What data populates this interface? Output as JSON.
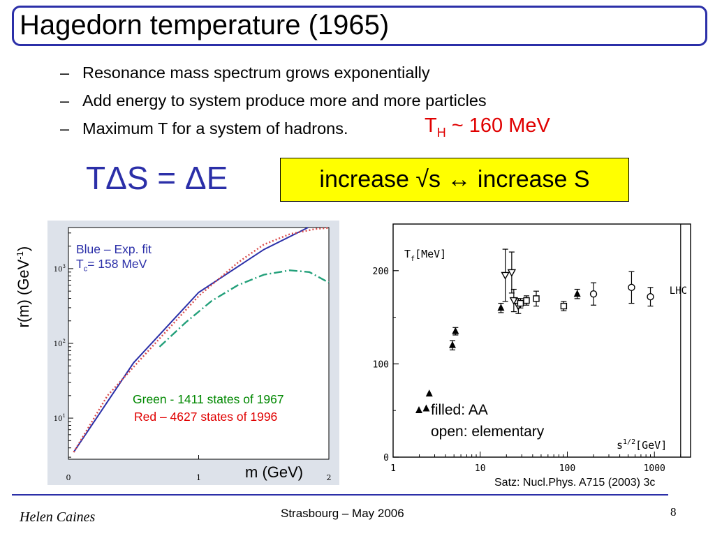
{
  "title": "Hagedorn temperature (1965)",
  "bullets": [
    "Resonance mass spectrum grows exponentially",
    "Add energy to system produce more and more particles",
    "Maximum T for a system of hadrons."
  ],
  "bullet_marker": "–",
  "th_note": {
    "symbol": "T",
    "sub": "H",
    "text": " ~ 160 MeV",
    "color": "#e00000"
  },
  "equation": "TΔS = ΔE",
  "highlight": {
    "text": "increase √s  ↔ increase S",
    "bg": "#ffff00"
  },
  "colors": {
    "title_border": "#2b2fa8",
    "blue": "#2b2fa8",
    "green": "#008800",
    "red": "#e00000",
    "panel_bg": "#dde2ea"
  },
  "left_chart_notes": {
    "blue_line1": "Blue – Exp. fit",
    "blue_T": "T",
    "blue_sub": "c",
    "blue_value": "= 158 MeV",
    "green": "Green - 1411 states of 1967",
    "red": "Red – 4627 states of 1996"
  },
  "right_chart_legend": {
    "filled": "filled: AA",
    "open": "open: elementary"
  },
  "source": "Satz: Nucl.Phys. A715 (2003) 3c",
  "footer": {
    "author": "Helen Caines",
    "conference": "Strasbourg  –  May 2006",
    "page": "8"
  },
  "chart_data": [
    {
      "type": "line",
      "xlabel": "m (GeV)",
      "ylabel": "r(m) (GeV-1)",
      "ylabel_main": "r(m) (GeV",
      "ylabel_sup": "-1",
      "ylabel_close": ")",
      "xlim": [
        0,
        2
      ],
      "ylim_log10": [
        0.45,
        3.55
      ],
      "yscale": "log",
      "x_ticks": [
        "0",
        "1",
        "2"
      ],
      "y_ticks": [
        {
          "base": "10",
          "exp": "1",
          "value": 10
        },
        {
          "base": "10",
          "exp": "2",
          "value": 100
        },
        {
          "base": "10",
          "exp": "3",
          "value": 1000
        }
      ],
      "series": [
        {
          "name": "Blue – Exp. fit",
          "color": "#2b2fa8",
          "style": "solid",
          "x": [
            0.04,
            0.5,
            1.0,
            1.5,
            1.84
          ],
          "y": [
            3.5,
            55,
            480,
            1800,
            3550
          ]
        },
        {
          "name": "Red – 4627 states of 1996",
          "color": "#d94a4a",
          "style": "dotted",
          "x": [
            0.04,
            0.3,
            0.6,
            1.0,
            1.3,
            1.5,
            1.7,
            1.9,
            2.0
          ],
          "y": [
            3.5,
            20,
            75,
            430,
            1200,
            2100,
            2900,
            3400,
            3500
          ]
        },
        {
          "name": "Green - 1411 states of 1967",
          "color": "#23a07a",
          "style": "dashdot",
          "x": [
            0.7,
            0.9,
            1.1,
            1.3,
            1.5,
            1.7,
            1.85,
            2.0
          ],
          "y": [
            90,
            190,
            370,
            600,
            830,
            950,
            900,
            650
          ]
        }
      ]
    },
    {
      "type": "scatter",
      "xlabel_base": "s",
      "xlabel_sup": "1/2",
      "xlabel_unit": "[GeV]",
      "ylabel_main": "T",
      "ylabel_sub": "f",
      "ylabel_unit": "[MeV]",
      "xscale": "log",
      "xlim": [
        1,
        2600
      ],
      "ylim": [
        0,
        250
      ],
      "x_ticks": [
        "1",
        "10",
        "100",
        "1000"
      ],
      "y_ticks": [
        "0",
        "100",
        "200"
      ],
      "annotation": "LHC",
      "series": [
        {
          "name": "filled: AA",
          "marker": "filled-triangle",
          "points": [
            [
              2.4,
              52
            ],
            [
              2.6,
              68
            ],
            [
              4.8,
              120
            ],
            [
              5.2,
              135
            ],
            [
              17.3,
              160
            ],
            [
              130,
              175
            ]
          ],
          "errors": [
            0,
            0,
            5,
            4,
            5,
            5
          ]
        },
        {
          "name": "open: elementary",
          "marker": "open-triangle-down",
          "points": [
            [
              19.4,
              195
            ],
            [
              23.0,
              198
            ],
            [
              24.3,
              168
            ],
            [
              27.4,
              162
            ]
          ],
          "errors": [
            28,
            22,
            12,
            8
          ]
        },
        {
          "name": "open: elementary",
          "marker": "open-square",
          "points": [
            [
              29.0,
              165
            ],
            [
              34.0,
              168
            ],
            [
              44.0,
              170
            ],
            [
              91.0,
              162
            ]
          ],
          "errors": [
            5,
            5,
            8,
            5
          ]
        },
        {
          "name": "open: elementary",
          "marker": "open-circle",
          "points": [
            [
              200,
              175
            ],
            [
              546,
              182
            ],
            [
              900,
              172
            ]
          ],
          "errors": [
            12,
            17,
            10
          ]
        }
      ]
    }
  ]
}
